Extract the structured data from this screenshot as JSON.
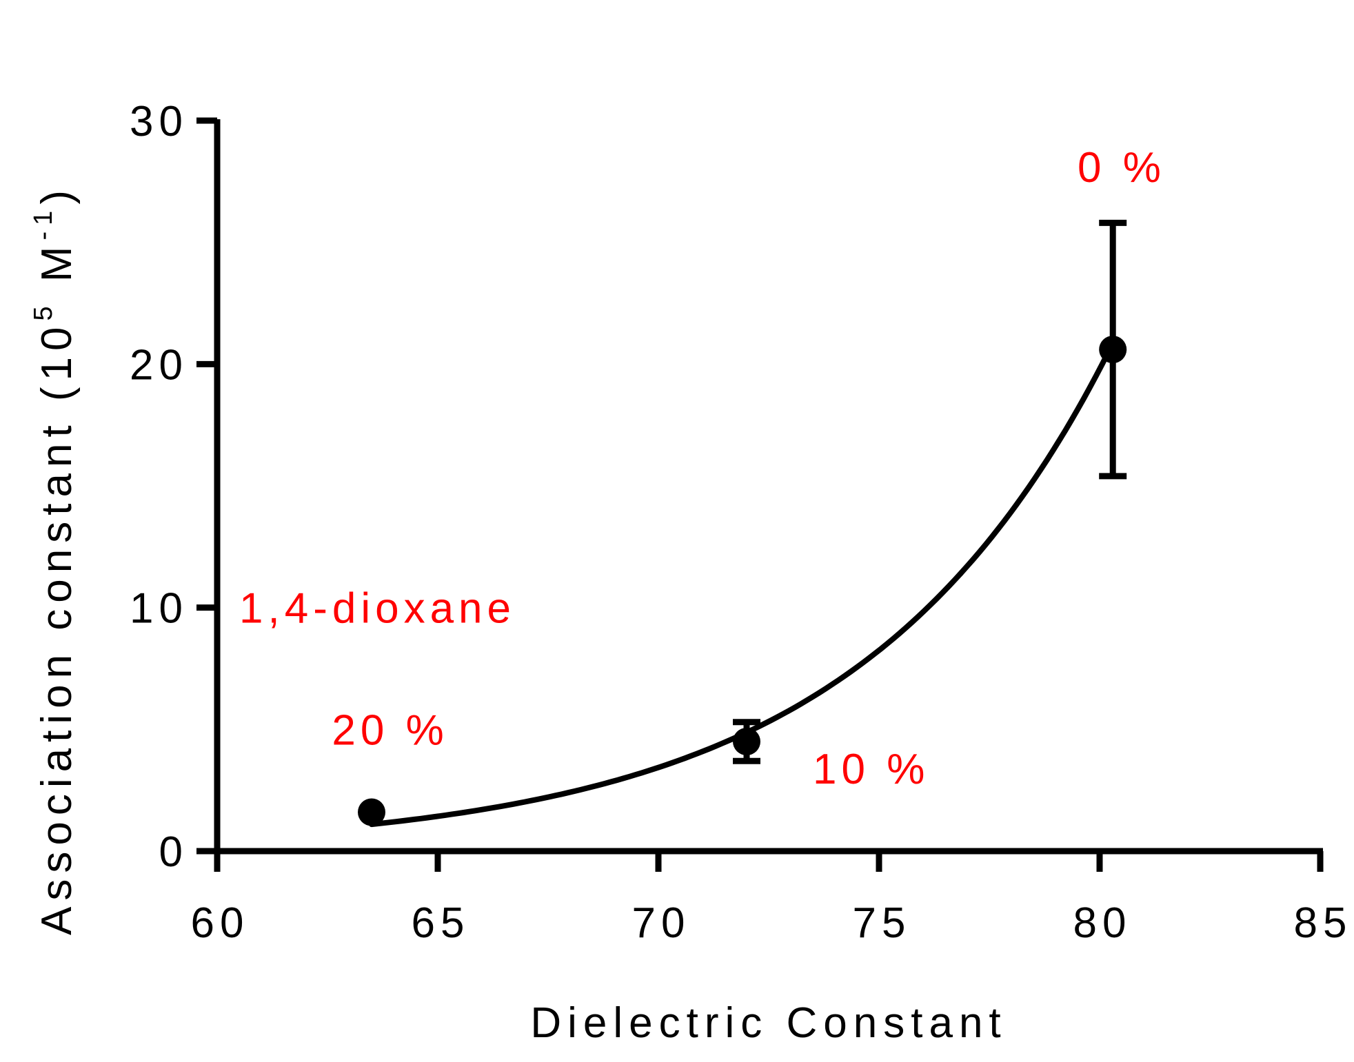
{
  "chart_data": {
    "type": "scatter",
    "xlabel": "Dielectric Constant",
    "ylabel_main": "Association constant (10",
    "ylabel_sup1": "5",
    "ylabel_mid": " M",
    "ylabel_sup2": "-1",
    "ylabel_end": ")",
    "xlim": [
      60,
      85
    ],
    "ylim": [
      0,
      30
    ],
    "x_ticks": [
      60,
      65,
      70,
      75,
      80,
      85
    ],
    "y_ticks": [
      0,
      10,
      20,
      30
    ],
    "x_tick_labels": [
      "60",
      "65",
      "70",
      "75",
      "80",
      "85"
    ],
    "y_tick_labels": [
      "0",
      "10",
      "20",
      "30"
    ],
    "grid": false,
    "series": [
      {
        "x": [
          63.5,
          72.0,
          80.3
        ],
        "y": [
          1.6,
          4.5,
          20.6
        ],
        "error": [
          0,
          0.8,
          5.2
        ]
      }
    ],
    "fit_curve": {
      "type": "exponential",
      "points": [
        [
          63.5,
          1.1
        ],
        [
          72.0,
          4.7
        ],
        [
          80.2,
          20.5
        ]
      ]
    },
    "annotations": [
      {
        "text": "1,4-dioxane",
        "x": 60.5,
        "y": 10.0
      },
      {
        "text": "20 %",
        "x": 62.6,
        "y": 5.0
      },
      {
        "text": "10 %",
        "x": 73.5,
        "y": 3.4
      },
      {
        "text": "0 %",
        "x": 79.5,
        "y": 28.1
      }
    ],
    "colors": {
      "data": "#000000",
      "annotation": "#ff0000"
    }
  }
}
